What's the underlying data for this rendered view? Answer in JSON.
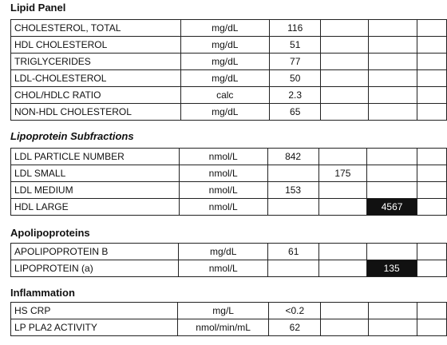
{
  "sections": [
    {
      "title": "Lipid Panel",
      "rows": [
        {
          "name": "CHOLESTEROL, TOTAL",
          "unit": "mg/dL",
          "value": "116",
          "col2": "",
          "col3": ""
        },
        {
          "name": "HDL CHOLESTEROL",
          "unit": "mg/dL",
          "value": "51",
          "col2": "",
          "col3": ""
        },
        {
          "name": "TRIGLYCERIDES",
          "unit": "mg/dL",
          "value": "77",
          "col2": "",
          "col3": ""
        },
        {
          "name": "LDL-CHOLESTEROL",
          "unit": "mg/dL",
          "value": "50",
          "col2": "",
          "col3": ""
        },
        {
          "name": "CHOL/HDLC RATIO",
          "unit": "calc",
          "value": "2.3",
          "col2": "",
          "col3": ""
        },
        {
          "name": "NON-HDL CHOLESTEROL",
          "unit": "mg/dL",
          "value": "65",
          "col2": "",
          "col3": ""
        }
      ]
    },
    {
      "title": "Lipoprotein Subfractions",
      "rows": [
        {
          "name": "LDL PARTICLE NUMBER",
          "unit": "nmol/L",
          "value": "842",
          "col2": "",
          "col3": ""
        },
        {
          "name": "LDL SMALL",
          "unit": "nmol/L",
          "value": "",
          "col2": "175",
          "col3": ""
        },
        {
          "name": "LDL MEDIUM",
          "unit": "nmol/L",
          "value": "153",
          "col2": "",
          "col3": ""
        },
        {
          "name": "HDL LARGE",
          "unit": "nmol/L",
          "value": "",
          "col2": "",
          "col3": "4567"
        }
      ]
    },
    {
      "title": "Apolipoproteins",
      "rows": [
        {
          "name": "APOLIPOPROTEIN B",
          "unit": "mg/dL",
          "value": "61",
          "col2": "",
          "col3": ""
        },
        {
          "name": "LIPOPROTEIN (a)",
          "unit": "nmol/L",
          "value": "",
          "col2": "",
          "col3": "135"
        }
      ]
    },
    {
      "title": "Inflammation",
      "rows": [
        {
          "name": "HS CRP",
          "unit": "mg/L",
          "value": "<0.2",
          "col2": "",
          "col3": ""
        },
        {
          "name": "LP PLA2 ACTIVITY",
          "unit": "nmol/min/mL",
          "value": "62",
          "col2": "",
          "col3": ""
        }
      ]
    }
  ],
  "colors": {
    "flag_bg": "#111111",
    "flag_text": "#ffffff"
  }
}
